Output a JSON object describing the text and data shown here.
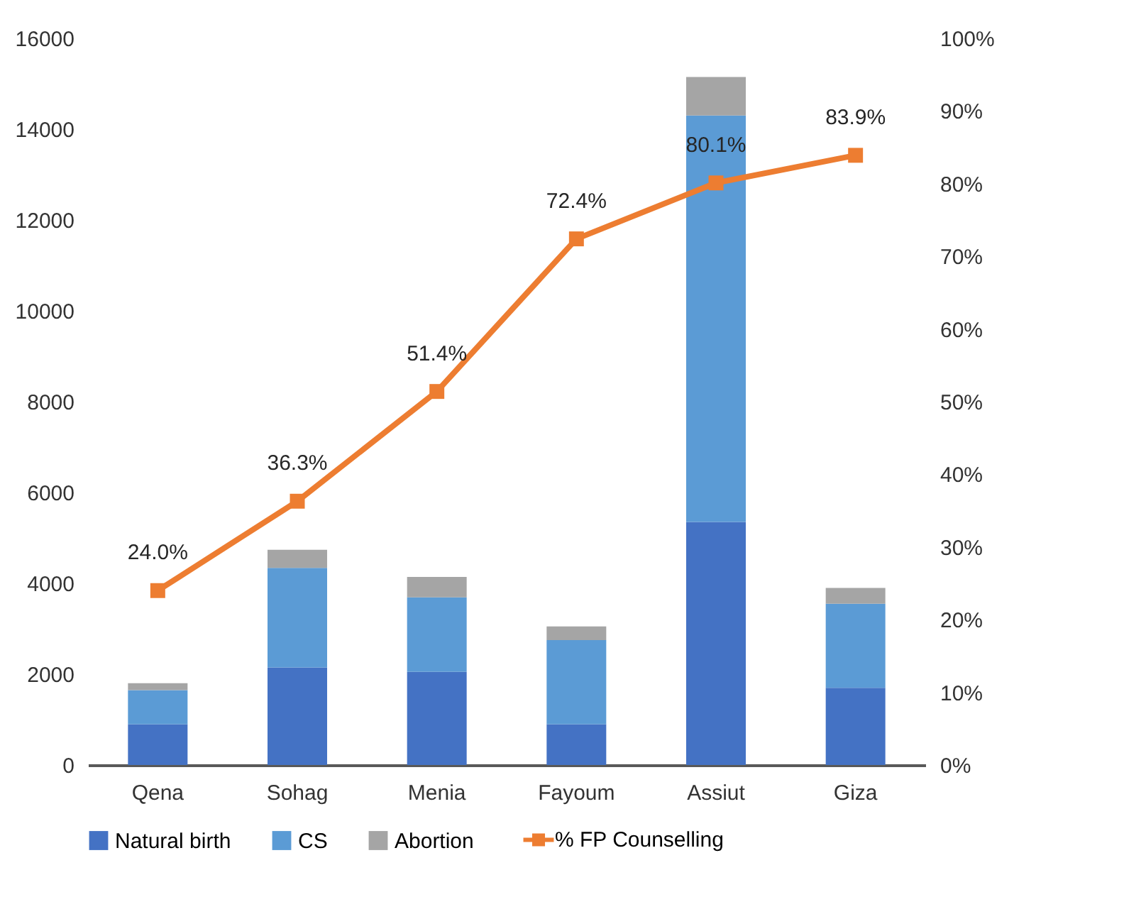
{
  "chart_data": {
    "type": "bar",
    "stacked": true,
    "categories": [
      "Qena",
      "Sohag",
      "Menia",
      "Fayoum",
      "Assiut",
      "Giza"
    ],
    "series": [
      {
        "name": "Natural birth",
        "color": "#4472c4",
        "values": [
          900,
          2150,
          2050,
          900,
          5350,
          1700
        ]
      },
      {
        "name": "CS",
        "color": "#5b9bd5",
        "values": [
          750,
          2190,
          1640,
          1850,
          8950,
          1850
        ]
      },
      {
        "name": "Abortion",
        "color": "#a5a5a5",
        "values": [
          150,
          400,
          450,
          300,
          850,
          350
        ]
      },
      {
        "name": "% FP Counselling",
        "type": "line",
        "axis": "y2",
        "color": "#ed7d31",
        "marker": "square",
        "values": [
          24.0,
          36.3,
          51.4,
          72.4,
          80.1,
          83.9
        ],
        "value_labels": [
          "24.0%",
          "36.3%",
          "51.4%",
          "72.4%",
          "80.1%",
          "83.9%"
        ]
      }
    ],
    "ylim": [
      0,
      16000
    ],
    "yticks": [
      0,
      2000,
      4000,
      6000,
      8000,
      10000,
      12000,
      14000,
      16000
    ],
    "y2lim": [
      0,
      100
    ],
    "y2ticks": [
      {
        "value": 0,
        "label": "0%"
      },
      {
        "value": 10,
        "label": "10%"
      },
      {
        "value": 20,
        "label": "20%"
      },
      {
        "value": 30,
        "label": "30%"
      },
      {
        "value": 40,
        "label": "40%"
      },
      {
        "value": 50,
        "label": "50%"
      },
      {
        "value": 60,
        "label": "60%"
      },
      {
        "value": 70,
        "label": "70%"
      },
      {
        "value": 80,
        "label": "80%"
      },
      {
        "value": 90,
        "label": "90%"
      },
      {
        "value": 100,
        "label": "100%"
      }
    ],
    "grid": false,
    "legend": "bottom"
  }
}
